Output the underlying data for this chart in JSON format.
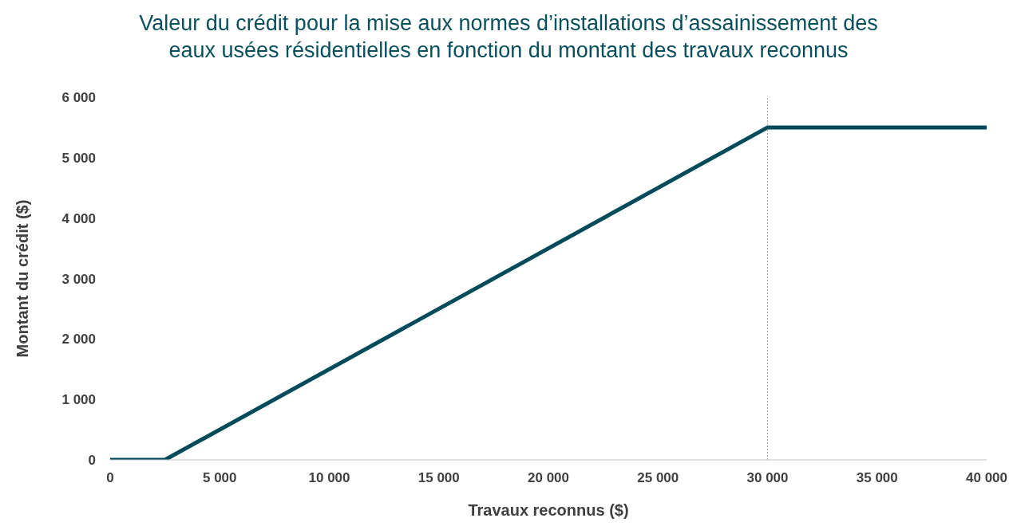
{
  "chart_data": {
    "type": "line",
    "title": "Valeur du crédit pour la mise aux normes d’installations d’assainissement des eaux usées résidentielles en fonction du montant des travaux reconnus",
    "xlabel": "Travaux reconnus ($)",
    "ylabel": "Montant du crédit ($)",
    "x": [
      0,
      2500,
      30000,
      40000
    ],
    "series": [
      {
        "color": "#004b5a",
        "values": [
          0,
          0,
          5500,
          5500
        ]
      }
    ],
    "xlim": [
      0,
      40000
    ],
    "ylim": [
      0,
      6000
    ],
    "xticks": [
      0,
      {
        "value": 5000,
        "label": "5 000"
      },
      {
        "value": 10000,
        "label": "10 000"
      },
      {
        "value": 15000,
        "label": "15 000"
      },
      {
        "value": 20000,
        "label": "20 000"
      },
      {
        "value": 25000,
        "label": "25 000"
      },
      {
        "value": 30000,
        "label": "30 000"
      },
      {
        "value": 35000,
        "label": "35 000"
      },
      {
        "value": 40000,
        "label": "40 000"
      }
    ],
    "yticks": [
      0,
      {
        "value": 1000,
        "label": "1 000"
      },
      {
        "value": 2000,
        "label": "2 000"
      },
      {
        "value": 3000,
        "label": "3 000"
      },
      {
        "value": 4000,
        "label": "4 000"
      },
      {
        "value": 5000,
        "label": "5 000"
      },
      {
        "value": 6000,
        "label": "6 000"
      }
    ],
    "ref_lines": [
      {
        "axis": "x",
        "value": 30000,
        "color": "#a6a6a6",
        "line_style": "dotted"
      }
    ],
    "grid": false,
    "legend": false,
    "marker": "none",
    "line_style": "solid"
  }
}
